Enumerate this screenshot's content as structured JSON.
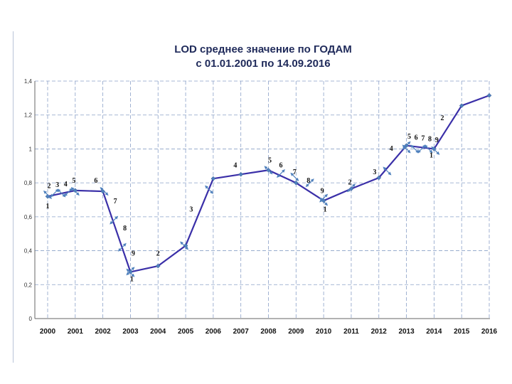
{
  "chart_data": {
    "type": "line",
    "title": "LOD среднее значение по ГОДАМ",
    "subtitle": "с 01.01.2001  по 14.09.2016",
    "xlabel": "",
    "ylabel": "",
    "categories": [
      "2000",
      "2001",
      "2002",
      "2003",
      "2004",
      "2005",
      "2006",
      "2007",
      "2008",
      "2009",
      "2010",
      "2011",
      "2012",
      "2013",
      "2014",
      "2015",
      "2016"
    ],
    "values": [
      0.72,
      0.755,
      0.75,
      0.275,
      0.31,
      0.43,
      0.825,
      0.85,
      0.875,
      0.8,
      0.695,
      0.765,
      0.83,
      1.02,
      1.0,
      1.255,
      1.315
    ],
    "ylim": [
      0,
      1.4
    ],
    "yticks": [
      {
        "v": 0,
        "label": "0"
      },
      {
        "v": 0.2,
        "label": "0,2"
      },
      {
        "v": 0.4,
        "label": "0,4"
      },
      {
        "v": 0.6,
        "label": "0,6"
      },
      {
        "v": 0.8,
        "label": "0,8"
      },
      {
        "v": 1.0,
        "label": "1"
      },
      {
        "v": 1.2,
        "label": "1,2"
      },
      {
        "v": 1.4,
        "label": "1,4"
      }
    ],
    "grid": true,
    "line_color": "#3a2fa8",
    "marker_color": "#4f81bd",
    "arrow_color": "#4f81bd",
    "grid_color": "#8aa0c8",
    "annotations": [
      {
        "text": "1",
        "x": 2000,
        "y": 0.65
      },
      {
        "text": "2",
        "x": 2000.05,
        "y": 0.77
      },
      {
        "text": "3",
        "x": 2000.35,
        "y": 0.775
      },
      {
        "text": "4",
        "x": 2000.65,
        "y": 0.78
      },
      {
        "text": "5",
        "x": 2000.95,
        "y": 0.8
      },
      {
        "text": "6",
        "x": 2001.75,
        "y": 0.8
      },
      {
        "text": "7",
        "x": 2002.45,
        "y": 0.68
      },
      {
        "text": "8",
        "x": 2002.8,
        "y": 0.52
      },
      {
        "text": "9",
        "x": 2003.1,
        "y": 0.37
      },
      {
        "text": "1",
        "x": 2003.05,
        "y": 0.22
      },
      {
        "text": "2",
        "x": 2004.0,
        "y": 0.37
      },
      {
        "text": "3",
        "x": 2005.2,
        "y": 0.63
      },
      {
        "text": "4",
        "x": 2006.8,
        "y": 0.89
      },
      {
        "text": "5",
        "x": 2008.05,
        "y": 0.92
      },
      {
        "text": "6",
        "x": 2008.45,
        "y": 0.89
      },
      {
        "text": "7",
        "x": 2008.95,
        "y": 0.85
      },
      {
        "text": "8",
        "x": 2009.45,
        "y": 0.8
      },
      {
        "text": "9",
        "x": 2009.95,
        "y": 0.74
      },
      {
        "text": "1",
        "x": 2010.05,
        "y": 0.63
      },
      {
        "text": "2",
        "x": 2010.95,
        "y": 0.79
      },
      {
        "text": "3",
        "x": 2011.85,
        "y": 0.85
      },
      {
        "text": "4",
        "x": 2012.45,
        "y": 0.99
      },
      {
        "text": "5",
        "x": 2013.1,
        "y": 1.06
      },
      {
        "text": "6",
        "x": 2013.35,
        "y": 1.055
      },
      {
        "text": "7",
        "x": 2013.6,
        "y": 1.05
      },
      {
        "text": "8",
        "x": 2013.85,
        "y": 1.045
      },
      {
        "text": "9",
        "x": 2014.1,
        "y": 1.04
      },
      {
        "text": "1",
        "x": 2013.9,
        "y": 0.95
      },
      {
        "text": "2",
        "x": 2014.3,
        "y": 1.17
      }
    ],
    "arrows": [
      {
        "x": 2000.0,
        "y": 0.73,
        "dx": 1,
        "dy": 1
      },
      {
        "x": 2000.25,
        "y": 0.74,
        "dx": 1,
        "dy": -1
      },
      {
        "x": 2000.5,
        "y": 0.74,
        "dx": 1,
        "dy": 1
      },
      {
        "x": 2000.75,
        "y": 0.745,
        "dx": 1,
        "dy": -1
      },
      {
        "x": 2001.0,
        "y": 0.75,
        "dx": 1,
        "dy": 1
      },
      {
        "x": 2002.05,
        "y": 0.75,
        "dx": 1,
        "dy": 1
      },
      {
        "x": 2002.4,
        "y": 0.58,
        "dx": 1,
        "dy": -1
      },
      {
        "x": 2002.7,
        "y": 0.42,
        "dx": 1,
        "dy": -1
      },
      {
        "x": 2003.0,
        "y": 0.28,
        "dx": 1,
        "dy": -1
      },
      {
        "x": 2003.0,
        "y": 0.27,
        "dx": 1,
        "dy": 1
      },
      {
        "x": 2004.95,
        "y": 0.43,
        "dx": 1,
        "dy": 1
      },
      {
        "x": 2005.85,
        "y": 0.76,
        "dx": 1,
        "dy": 1
      },
      {
        "x": 2008.0,
        "y": 0.875,
        "dx": 1,
        "dy": 1
      },
      {
        "x": 2008.45,
        "y": 0.855,
        "dx": 1,
        "dy": -1
      },
      {
        "x": 2008.95,
        "y": 0.835,
        "dx": 1,
        "dy": 1
      },
      {
        "x": 2009.5,
        "y": 0.8,
        "dx": 1,
        "dy": -1
      },
      {
        "x": 2010.0,
        "y": 0.71,
        "dx": 1,
        "dy": -1
      },
      {
        "x": 2010.0,
        "y": 0.69,
        "dx": 1,
        "dy": 1
      },
      {
        "x": 2011.0,
        "y": 0.77,
        "dx": 1,
        "dy": -1
      },
      {
        "x": 2012.3,
        "y": 0.87,
        "dx": 1,
        "dy": 1
      },
      {
        "x": 2013.0,
        "y": 1.0,
        "dx": 1,
        "dy": 1
      },
      {
        "x": 2013.0,
        "y": 1.02,
        "dx": 1,
        "dy": -1
      },
      {
        "x": 2013.3,
        "y": 1.0,
        "dx": 1,
        "dy": 1
      },
      {
        "x": 2013.55,
        "y": 1.0,
        "dx": 1,
        "dy": -1
      },
      {
        "x": 2013.8,
        "y": 1.0,
        "dx": 1,
        "dy": 1
      },
      {
        "x": 2014.05,
        "y": 0.99,
        "dx": 1,
        "dy": 1
      }
    ]
  }
}
